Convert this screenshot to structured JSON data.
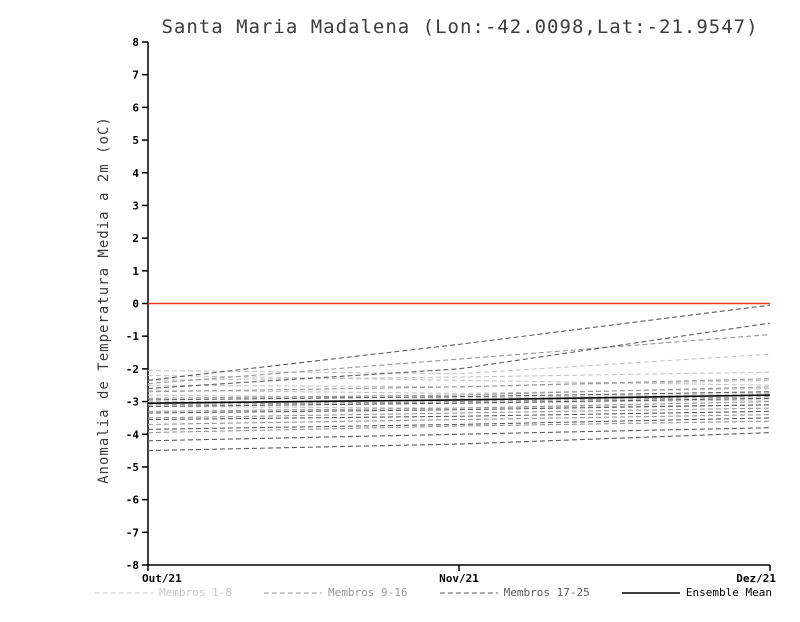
{
  "chart": {
    "title": "Santa Maria Madalena (Lon:-42.0098,Lat:-21.9547)",
    "ylabel": "Anomalia de Temperatura Media a 2m (oC)",
    "x_tick_labels": [
      "Out/21",
      "Nov/21",
      "Dez/21"
    ],
    "y_ticks": [
      8,
      7,
      6,
      5,
      4,
      3,
      2,
      1,
      0,
      -1,
      -2,
      -3,
      -4,
      -5,
      -6,
      -7,
      -8
    ],
    "zero_line_color": "#ee3c24",
    "axis_color": "#000000"
  },
  "legend": {
    "items": [
      {
        "label": "Membros 1-8",
        "color": "#c6c6c6",
        "style": "dashed"
      },
      {
        "label": "Membros 9-16",
        "color": "#989898",
        "style": "dashed"
      },
      {
        "label": "Membros 17-25",
        "color": "#5c5c5c",
        "style": "dashed"
      },
      {
        "label": "Ensemble Mean",
        "color": "#000000",
        "style": "solid"
      }
    ]
  },
  "chart_data": {
    "type": "line",
    "title": "Santa Maria Madalena (Lon:-42.0098,Lat:-21.9547)",
    "xlabel": "",
    "ylabel": "Anomalia de Temperatura Media a 2m (oC)",
    "x": [
      "Out/21",
      "Nov/21",
      "Dez/21"
    ],
    "ylim": [
      -8,
      8
    ],
    "grid": false,
    "legend_position": "bottom",
    "zero_line": 0,
    "series": [
      {
        "name": "Membro 1",
        "legend": 0,
        "values": [
          -2.05,
          -2.15,
          -1.55
        ]
      },
      {
        "name": "Membro 2",
        "legend": 0,
        "values": [
          -2.2,
          -2.35,
          -2.5
        ]
      },
      {
        "name": "Membro 3",
        "legend": 0,
        "values": [
          -2.35,
          -2.25,
          -2.1
        ]
      },
      {
        "name": "Membro 4",
        "legend": 0,
        "values": [
          -2.5,
          -2.55,
          -2.35
        ]
      },
      {
        "name": "Membro 5",
        "legend": 0,
        "values": [
          -2.65,
          -2.75,
          -2.6
        ]
      },
      {
        "name": "Membro 6",
        "legend": 0,
        "values": [
          -2.8,
          -2.9,
          -2.75
        ]
      },
      {
        "name": "Membro 7",
        "legend": 0,
        "values": [
          -3.0,
          -3.05,
          -2.95
        ]
      },
      {
        "name": "Membro 8",
        "legend": 0,
        "values": [
          -3.15,
          -3.2,
          -3.1
        ]
      },
      {
        "name": "Membro 9",
        "legend": 1,
        "values": [
          -2.45,
          -1.7,
          -0.95
        ]
      },
      {
        "name": "Membro 10",
        "legend": 1,
        "values": [
          -2.7,
          -2.55,
          -2.3
        ]
      },
      {
        "name": "Membro 11",
        "legend": 1,
        "values": [
          -2.9,
          -2.8,
          -2.55
        ]
      },
      {
        "name": "Membro 12",
        "legend": 1,
        "values": [
          -3.1,
          -3.0,
          -2.85
        ]
      },
      {
        "name": "Membro 13",
        "legend": 1,
        "values": [
          -3.3,
          -3.2,
          -3.0
        ]
      },
      {
        "name": "Membro 14",
        "legend": 1,
        "values": [
          -3.5,
          -3.35,
          -3.2
        ]
      },
      {
        "name": "Membro 15",
        "legend": 1,
        "values": [
          -3.7,
          -3.55,
          -3.4
        ]
      },
      {
        "name": "Membro 16",
        "legend": 1,
        "values": [
          -3.95,
          -3.75,
          -3.6
        ]
      },
      {
        "name": "Membro 17",
        "legend": 2,
        "values": [
          -2.35,
          -1.25,
          -0.05
        ]
      },
      {
        "name": "Membro 18",
        "legend": 2,
        "values": [
          -2.6,
          -2.0,
          -0.6
        ]
      },
      {
        "name": "Membro 19",
        "legend": 2,
        "values": [
          -2.95,
          -2.85,
          -2.7
        ]
      },
      {
        "name": "Membro 20",
        "legend": 2,
        "values": [
          -3.15,
          -3.05,
          -2.9
        ]
      },
      {
        "name": "Membro 21",
        "legend": 2,
        "values": [
          -3.35,
          -3.25,
          -3.1
        ]
      },
      {
        "name": "Membro 22",
        "legend": 2,
        "values": [
          -3.55,
          -3.45,
          -3.3
        ]
      },
      {
        "name": "Membro 23",
        "legend": 2,
        "values": [
          -3.85,
          -3.7,
          -3.5
        ]
      },
      {
        "name": "Membro 24",
        "legend": 2,
        "values": [
          -4.2,
          -4.0,
          -3.8
        ]
      },
      {
        "name": "Membro 25",
        "legend": 2,
        "values": [
          -4.5,
          -4.3,
          -3.95
        ]
      },
      {
        "name": "Ensemble Mean",
        "legend": 3,
        "values": [
          -3.05,
          -2.95,
          -2.8
        ]
      }
    ]
  }
}
